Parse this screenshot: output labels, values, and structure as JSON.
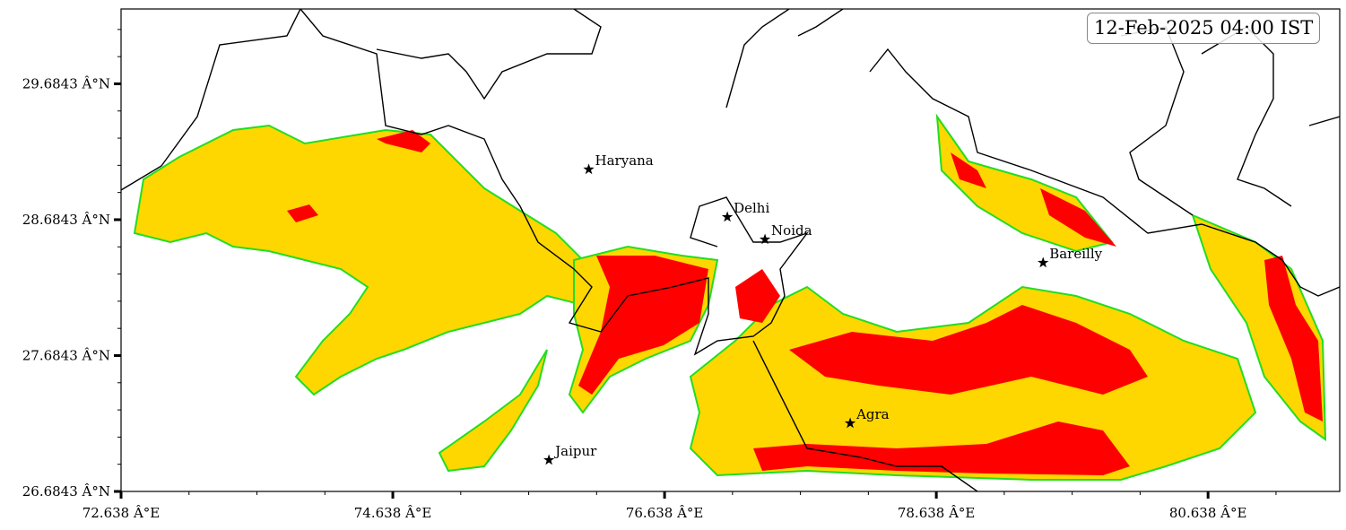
{
  "timestamp_label": "12-Feb-2025 04:00 IST",
  "map": {
    "lon_range": [
      72.638,
      81.607
    ],
    "lat_range": [
      26.6843,
      30.235
    ],
    "x_ticks": [
      {
        "value": 72.638,
        "label": "72.638 Â°E"
      },
      {
        "value": 74.638,
        "label": "74.638 Â°E"
      },
      {
        "value": 76.638,
        "label": "76.638 Â°E"
      },
      {
        "value": 78.638,
        "label": "78.638 Â°E"
      },
      {
        "value": 80.638,
        "label": "80.638 Â°E"
      }
    ],
    "y_ticks": [
      {
        "value": 26.6843,
        "label": "26.6843 Â°N"
      },
      {
        "value": 27.6843,
        "label": "27.6843 Â°N"
      },
      {
        "value": 28.6843,
        "label": "28.6843 Â°N"
      },
      {
        "value": 29.6843,
        "label": "29.6843 Â°N"
      }
    ],
    "fog_colors": {
      "light": "#ffd700",
      "dense": "#ff0000",
      "edge": "#22dd22",
      "outer_edge": "#00ffff"
    },
    "cities": [
      {
        "name": "Haryana",
        "lon": 76.08,
        "lat": 29.054
      },
      {
        "name": "Delhi",
        "lon": 77.1,
        "lat": 28.704
      },
      {
        "name": "Noida",
        "lon": 77.377,
        "lat": 28.539
      },
      {
        "name": "Bareilly",
        "lon": 79.424,
        "lat": 28.367
      },
      {
        "name": "Agra",
        "lon": 78.004,
        "lat": 27.186
      },
      {
        "name": "Jaipur",
        "lon": 75.787,
        "lat": 26.915
      }
    ]
  }
}
